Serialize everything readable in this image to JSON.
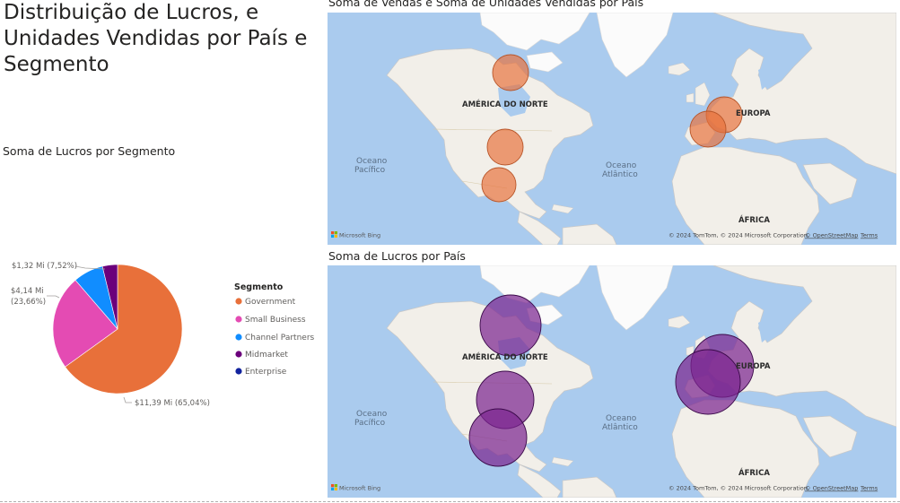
{
  "title": "Distribuição de Lucros, e Unidades Vendidas por País e Segmento",
  "pie": {
    "title": "Soma de Lucros por Segmento",
    "data_labels": [
      "$1,32 Mi (7,52%)",
      "$4,14 Mi",
      "(23,66%)",
      "$11,39 Mi (65,04%)"
    ],
    "legend_title": "Segmento",
    "legend": [
      {
        "label": "Government",
        "color": "#e8703a"
      },
      {
        "label": "Small Business",
        "color": "#e44bb3"
      },
      {
        "label": "Channel Partners",
        "color": "#118dff"
      },
      {
        "label": "Midmarket",
        "color": "#6b007b"
      },
      {
        "label": "Enterprise",
        "color": "#12239e"
      }
    ]
  },
  "map1": {
    "title": "Soma de Vendas e Soma de Unidades Vendidas por País",
    "bubble_color": "#e8703a"
  },
  "map2": {
    "title": "Soma de Lucros por País",
    "bubble_color": "#7b2590"
  },
  "map_labels": {
    "north_america": "AMÉRICA DO NORTE",
    "europe": "EUROPA",
    "africa": "ÁFRICA",
    "pacific_1": "Oceano",
    "pacific_2": "Pacífico",
    "atlantic_1": "Oceano",
    "atlantic_2": "Atlântico",
    "bing": "Microsoft Bing",
    "attribution": "© 2024 TomTom, © 2024 Microsoft Corporation,",
    "osm": "© OpenStreetMap",
    "terms": "Terms"
  },
  "chart_data": [
    {
      "type": "pie",
      "title": "Soma de Lucros por Segmento",
      "legend_title": "Segmento",
      "legend_placement": "right",
      "categories": [
        "Government",
        "Small Business",
        "Channel Partners",
        "Midmarket",
        "Enterprise"
      ],
      "values": [
        11.39,
        4.14,
        1.32,
        0.66,
        0.0
      ],
      "percentages": [
        65.04,
        23.66,
        7.52,
        3.78,
        0.0
      ],
      "unit": "$ Mi",
      "colors": [
        "#e8703a",
        "#e44bb3",
        "#118dff",
        "#6b007b",
        "#12239e"
      ]
    }
  ]
}
